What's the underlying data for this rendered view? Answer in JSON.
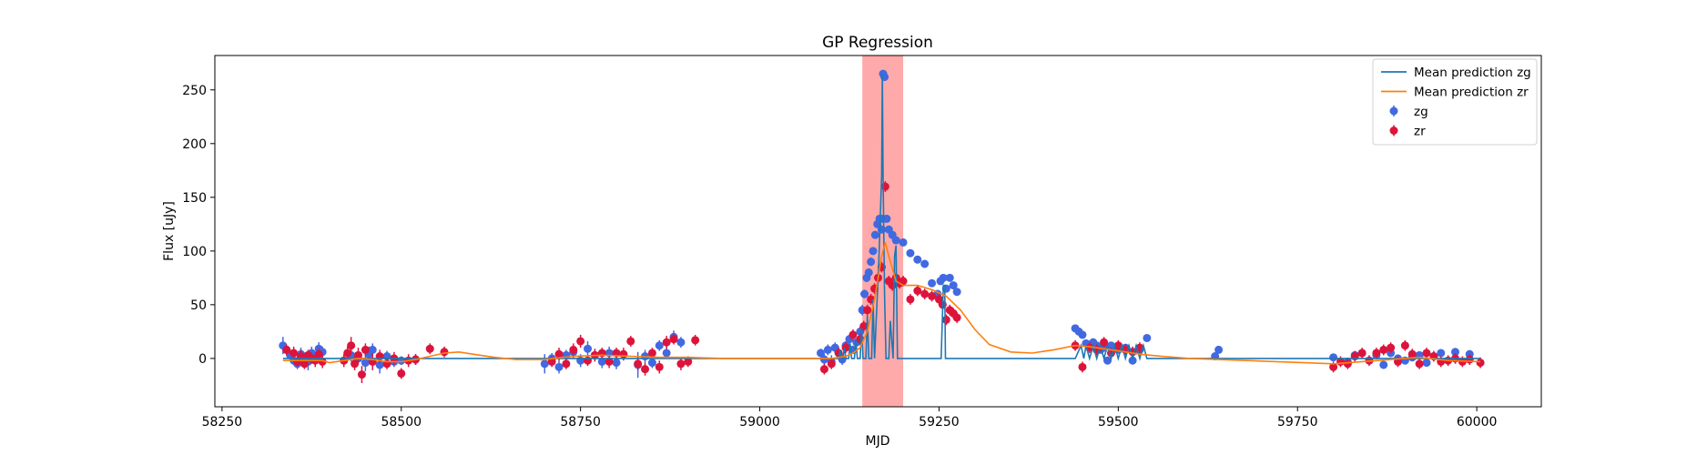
{
  "chart_data": {
    "type": "scatter",
    "title": "GP Regression",
    "xlabel": "MJD",
    "ylabel": "Flux [uJy]",
    "xlim": [
      58240,
      60090
    ],
    "ylim": [
      -45,
      282
    ],
    "xticks": [
      58250,
      58500,
      58750,
      59000,
      59250,
      59500,
      59750,
      60000
    ],
    "yticks": [
      0,
      50,
      100,
      150,
      200,
      250
    ],
    "legend_position": "top-right",
    "shaded_region": {
      "x0": 59143,
      "x1": 59200,
      "color": "#ffaaaa"
    },
    "colors": {
      "zg": "#4169e1",
      "zr": "#dc143c",
      "mean_zg": "#1f77b4",
      "mean_zr": "#ff7f0e"
    },
    "legend": [
      {
        "label": "Mean prediction zg",
        "kind": "line",
        "color": "#1f77b4"
      },
      {
        "label": "Mean prediction zr",
        "kind": "line",
        "color": "#ff7f0e"
      },
      {
        "label": "zg",
        "kind": "marker",
        "color": "#4169e1"
      },
      {
        "label": "zr",
        "kind": "marker",
        "color": "#dc143c"
      }
    ],
    "series": [
      {
        "name": "Mean prediction zg",
        "kind": "line",
        "color": "#1f77b4",
        "x": [
          58335,
          59080,
          59100,
          59110,
          59112,
          59114,
          59116,
          59118,
          59120,
          59124,
          59126,
          59128,
          59132,
          59134,
          59136,
          59140,
          59142,
          59144,
          59148,
          59150,
          59152,
          59156,
          59158,
          59160,
          59166,
          59170,
          59171,
          59172,
          59174,
          59176,
          59178,
          59180,
          59182,
          59186,
          59188,
          59190,
          59192,
          59250,
          59253,
          59256,
          59258,
          59259,
          59440,
          59448,
          59452,
          59455,
          59460,
          59465,
          59470,
          59475,
          59480,
          59485,
          59490,
          59495,
          59500,
          59505,
          59510,
          59515,
          59520,
          59525,
          59530,
          59535,
          59540,
          60005
        ],
        "y": [
          0,
          0,
          0,
          0,
          8,
          0,
          0,
          10,
          0,
          0,
          14,
          0,
          0,
          18,
          0,
          0,
          28,
          0,
          0,
          40,
          0,
          0,
          55,
          0,
          90,
          170,
          265,
          170,
          60,
          0,
          0,
          0,
          35,
          0,
          95,
          105,
          0,
          0,
          0,
          68,
          68,
          0,
          0,
          12,
          0,
          12,
          0,
          12,
          0,
          12,
          0,
          12,
          0,
          12,
          0,
          12,
          0,
          12,
          0,
          12,
          0,
          12,
          0,
          0
        ]
      },
      {
        "name": "Mean prediction zr",
        "kind": "line",
        "color": "#ff7f0e",
        "x": [
          58335,
          58390,
          58400,
          58420,
          58440,
          58460,
          58480,
          58500,
          58520,
          58540,
          58560,
          58580,
          58600,
          58630,
          58660,
          58700,
          58740,
          58780,
          58820,
          58860,
          58900,
          58950,
          59000,
          59050,
          59100,
          59120,
          59130,
          59140,
          59150,
          59160,
          59170,
          59175,
          59180,
          59190,
          59200,
          59220,
          59240,
          59260,
          59280,
          59300,
          59320,
          59350,
          59380,
          59410,
          59440,
          59460,
          59480,
          59500,
          59530,
          59560,
          59600,
          59640,
          59680,
          59720,
          59760,
          59800,
          59840,
          59880,
          59920,
          59960,
          60005
        ],
        "y": [
          -2,
          -2,
          -4,
          -2,
          0,
          -1,
          -3,
          -3,
          -1,
          2,
          5,
          6,
          4,
          1,
          -1,
          -1,
          2,
          3,
          2,
          1,
          1,
          0,
          0,
          0,
          0,
          2,
          5,
          10,
          25,
          55,
          95,
          108,
          95,
          72,
          68,
          68,
          64,
          58,
          45,
          27,
          13,
          6,
          5,
          8,
          12,
          11,
          9,
          7,
          4,
          2,
          0,
          -1,
          -2,
          -3,
          -4,
          -5,
          -3,
          -1,
          1,
          -2,
          -3
        ]
      },
      {
        "name": "zg",
        "kind": "scatter",
        "color": "#4169e1",
        "x": [
          58335,
          58340,
          58345,
          58350,
          58355,
          58360,
          58365,
          58370,
          58375,
          58380,
          58385,
          58390,
          58420,
          58430,
          58440,
          58450,
          58455,
          58460,
          58470,
          58480,
          58490,
          58500,
          58520,
          58700,
          58710,
          58720,
          58730,
          58740,
          58750,
          58760,
          58770,
          58780,
          58790,
          58800,
          58830,
          58840,
          58850,
          58860,
          58870,
          58880,
          58890,
          59085,
          59090,
          59095,
          59100,
          59105,
          59110,
          59115,
          59120,
          59125,
          59130,
          59135,
          59140,
          59143,
          59146,
          59149,
          59152,
          59155,
          59158,
          59161,
          59164,
          59167,
          59170,
          59171,
          59172,
          59174,
          59177,
          59180,
          59185,
          59190,
          59200,
          59210,
          59220,
          59230,
          59240,
          59248,
          59252,
          59256,
          59260,
          59265,
          59270,
          59275,
          59440,
          59445,
          59450,
          59455,
          59460,
          59465,
          59470,
          59475,
          59480,
          59485,
          59490,
          59495,
          59500,
          59510,
          59520,
          59530,
          59540,
          59635,
          59640,
          59800,
          59820,
          59830,
          59840,
          59850,
          59860,
          59870,
          59880,
          59890,
          59900,
          59910,
          59920,
          59930,
          59940,
          59950,
          59970,
          59990
        ],
        "y": [
          12,
          8,
          3,
          -2,
          -5,
          4,
          0,
          -3,
          5,
          2,
          9,
          6,
          -2,
          3,
          0,
          -4,
          4,
          8,
          -6,
          2,
          -3,
          -2,
          -1,
          -5,
          0,
          -8,
          3,
          6,
          -2,
          9,
          3,
          -3,
          5,
          -4,
          -6,
          2,
          -4,
          12,
          5,
          20,
          15,
          5,
          -1,
          8,
          -3,
          10,
          5,
          -1,
          12,
          18,
          8,
          15,
          25,
          45,
          60,
          75,
          80,
          90,
          100,
          115,
          125,
          130,
          120,
          130,
          265,
          262,
          130,
          120,
          115,
          110,
          108,
          98,
          92,
          88,
          70,
          60,
          72,
          75,
          65,
          75,
          68,
          62,
          28,
          25,
          22,
          14,
          10,
          15,
          12,
          8,
          10,
          -2,
          12,
          10,
          8,
          10,
          -2,
          8,
          19,
          2,
          8,
          1,
          -3,
          3,
          5,
          -2,
          3,
          -6,
          5,
          0,
          -2,
          1,
          3,
          -4,
          2,
          5,
          6,
          4
        ],
        "err": [
          8,
          3,
          4,
          4,
          5,
          6,
          5,
          8,
          6,
          4,
          6,
          5,
          5,
          6,
          5,
          8,
          7,
          6,
          8,
          5,
          5,
          4,
          5,
          9,
          5,
          6,
          5,
          6,
          6,
          7,
          5,
          6,
          6,
          6,
          12,
          6,
          5,
          5,
          5,
          6,
          5,
          4,
          5,
          5,
          6,
          5,
          5,
          5,
          4,
          4,
          4,
          4,
          5,
          5,
          4,
          4,
          4,
          4,
          3,
          3,
          3,
          3,
          3,
          3,
          3,
          3,
          3,
          3,
          3,
          3,
          3,
          3,
          3,
          3,
          3,
          3,
          3,
          3,
          3,
          3,
          3,
          3,
          3,
          3,
          3,
          3,
          3,
          3,
          3,
          3,
          3,
          3,
          3,
          3,
          3,
          3,
          3,
          3,
          3,
          3,
          3,
          3,
          3,
          3,
          3,
          3,
          3,
          3,
          3,
          3,
          3,
          3,
          3,
          3,
          3,
          3,
          3,
          3
        ]
      },
      {
        "name": "zr",
        "kind": "scatter",
        "color": "#dc143c",
        "x": [
          58340,
          58350,
          58355,
          58360,
          58365,
          58370,
          58375,
          58380,
          58385,
          58390,
          58420,
          58425,
          58430,
          58435,
          58440,
          58445,
          58450,
          58460,
          58470,
          58480,
          58490,
          58500,
          58510,
          58520,
          58540,
          58560,
          58710,
          58720,
          58730,
          58740,
          58750,
          58760,
          58770,
          58780,
          58790,
          58800,
          58810,
          58820,
          58830,
          58840,
          58850,
          58860,
          58870,
          58880,
          58890,
          58900,
          58910,
          59090,
          59100,
          59110,
          59120,
          59130,
          59140,
          59145,
          59150,
          59155,
          59160,
          59165,
          59170,
          59175,
          59180,
          59185,
          59190,
          59195,
          59200,
          59210,
          59220,
          59230,
          59240,
          59250,
          59255,
          59260,
          59265,
          59270,
          59275,
          59440,
          59450,
          59460,
          59470,
          59480,
          59490,
          59500,
          59510,
          59520,
          59530,
          59800,
          59810,
          59820,
          59830,
          59840,
          59850,
          59860,
          59870,
          59880,
          59890,
          59900,
          59910,
          59920,
          59930,
          59940,
          59950,
          59960,
          59970,
          59980,
          59990,
          60005
        ],
        "y": [
          8,
          5,
          -3,
          2,
          -5,
          3,
          0,
          -2,
          4,
          -3,
          -2,
          5,
          12,
          -5,
          3,
          -15,
          8,
          -3,
          2,
          -5,
          0,
          -14,
          -2,
          -1,
          9,
          6,
          -3,
          4,
          -5,
          8,
          16,
          -2,
          3,
          5,
          -3,
          5,
          4,
          16,
          -5,
          -10,
          5,
          -8,
          15,
          18,
          -5,
          -3,
          17,
          -10,
          -5,
          5,
          10,
          22,
          18,
          30,
          45,
          55,
          65,
          75,
          85,
          160,
          72,
          68,
          75,
          70,
          72,
          55,
          63,
          60,
          58,
          55,
          50,
          36,
          45,
          42,
          38,
          12,
          -8,
          10,
          8,
          15,
          5,
          12,
          8,
          6,
          10,
          -8,
          -3,
          -5,
          2,
          5,
          -2,
          5,
          8,
          10,
          -3,
          12,
          4,
          -5,
          5,
          2,
          -3,
          -2,
          0,
          -3,
          -1,
          -4
        ],
        "err": [
          5,
          6,
          5,
          6,
          5,
          5,
          5,
          6,
          5,
          6,
          6,
          6,
          8,
          6,
          7,
          8,
          6,
          8,
          6,
          5,
          6,
          5,
          6,
          5,
          5,
          5,
          5,
          6,
          5,
          6,
          6,
          5,
          6,
          5,
          6,
          5,
          6,
          5,
          6,
          6,
          5,
          6,
          6,
          5,
          6,
          5,
          5,
          5,
          5,
          5,
          5,
          5,
          5,
          5,
          5,
          5,
          5,
          5,
          5,
          5,
          5,
          5,
          5,
          5,
          5,
          5,
          5,
          5,
          5,
          5,
          5,
          5,
          5,
          5,
          5,
          5,
          5,
          5,
          5,
          5,
          5,
          5,
          5,
          5,
          5,
          5,
          5,
          5,
          5,
          5,
          5,
          5,
          5,
          5,
          5,
          5,
          5,
          5,
          5,
          5,
          5,
          5,
          5,
          5,
          5,
          5
        ]
      }
    ]
  }
}
